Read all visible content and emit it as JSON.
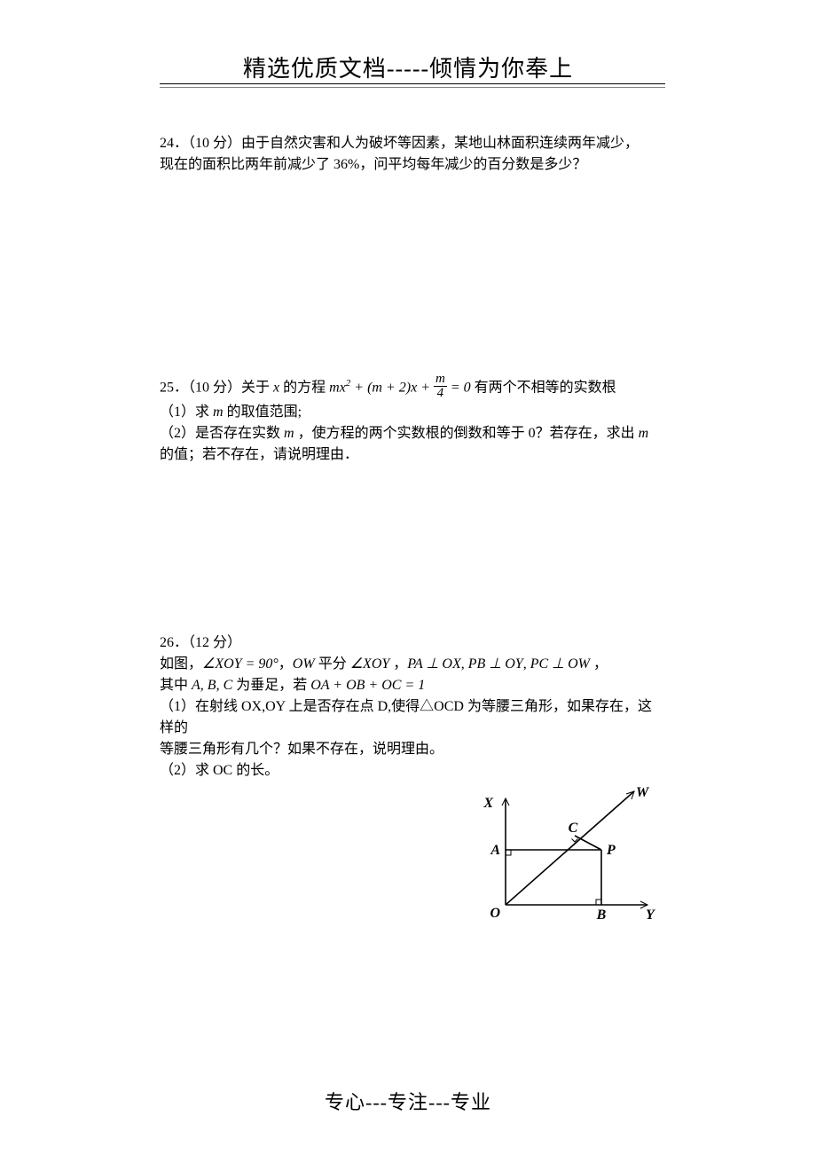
{
  "header": "精选优质文档-----倾情为你奉上",
  "footer": "专心---专注---专业",
  "p24": {
    "line1": "24．（10 分）由于自然灾害和人为破坏等因素，某地山林面积连续两年减少，",
    "line2": "现在的面积比两年前减少了 36%，问平均每年减少的百分数是多少？"
  },
  "p25": {
    "lead": "25．（10 分）关于 ",
    "var_x": "x",
    "mid": " 的方程 ",
    "eq_a": "mx",
    "eq_b": " + (m + 2)x + ",
    "frac_num": "m",
    "frac_den": "4",
    "eq_c": " = 0",
    "tail": " 有两个不相等的实数根",
    "s1a": "（1）求 ",
    "var_m1": "m",
    "s1b": " 的取值范围;",
    "s2a": "（2）是否存在实数 ",
    "var_m2": "m",
    "s2b": " ，使方程的两个实数根的倒数和等于 0？若存在，求出 ",
    "var_m3": "m",
    "s3": "的值；若不存在，请说明理由．"
  },
  "p26": {
    "l1": "26．（12 分）",
    "l2a": "如图，",
    "ang1": "∠XOY = 90°",
    "l2b": "，",
    "ow": "OW",
    "l2c": " 平分 ",
    "ang2": "∠XOY",
    "l2d": " ，",
    "pa": "PA ⊥ OX",
    "comma1": ", ",
    "pb": "PB ⊥ OY",
    "comma2": ", ",
    "pc": "PC ⊥ OW",
    "l2e": " ，",
    "l3a": "其中 ",
    "abc": "A, B, C",
    "l3b": " 为垂足，若 ",
    "sum": "OA + OB + OC = 1",
    "l4": "（1）在射线 OX,OY 上是否存在点 D,使得△OCD 为等腰三角形，如果存在，这样的",
    "l5": "等腰三角形有几个？如果不存在，说明理由。",
    "l6": "（2）求 OC 的长。"
  },
  "figure": {
    "labels": {
      "X": "X",
      "W": "W",
      "A": "A",
      "C": "C",
      "P": "P",
      "O": "O",
      "B": "B",
      "Y": "Y"
    },
    "stroke": "#000000",
    "stroke_width": 1.6,
    "font_size": 16
  }
}
